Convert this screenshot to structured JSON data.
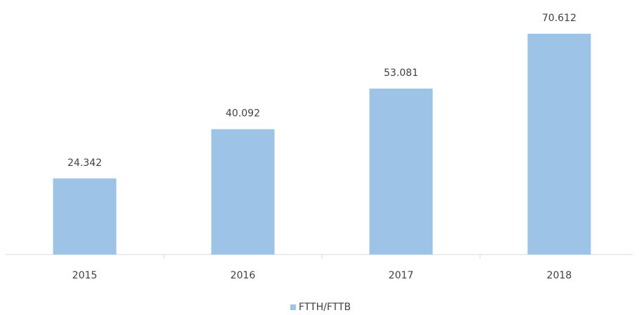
{
  "chart_data": {
    "type": "bar",
    "categories": [
      "2015",
      "2016",
      "2017",
      "2018"
    ],
    "series": [
      {
        "name": "FTTH/FTTB",
        "color": "#9dc3e6",
        "values": [
          24.342,
          40.092,
          53.081,
          70.612
        ]
      }
    ],
    "data_labels": true
  }
}
